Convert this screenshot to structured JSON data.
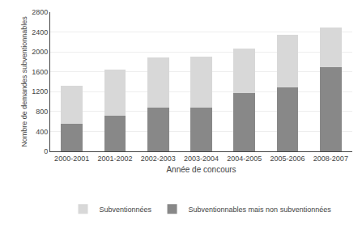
{
  "chart_data": {
    "type": "bar",
    "stacked": true,
    "categories": [
      "2000-2001",
      "2001-2002",
      "2002-2003",
      "2003-2004",
      "2004-2005",
      "2005-2006",
      "2008-2007"
    ],
    "series": [
      {
        "name": "Subventionnables mais non subventionnées",
        "color": "#888888",
        "values": [
          560,
          720,
          880,
          880,
          1180,
          1290,
          1700
        ]
      },
      {
        "name": "Subventionnées",
        "color": "#d8d8d8",
        "values": [
          760,
          920,
          1010,
          1020,
          880,
          1060,
          790
        ]
      }
    ],
    "xlabel": "Année de concours",
    "ylabel": "Nombre de demandes subventionnables",
    "ylim": [
      0,
      2800
    ],
    "yticks": [
      0,
      400,
      800,
      1200,
      1600,
      2000,
      2400,
      2800
    ],
    "grid": true,
    "legend": "bottom"
  }
}
